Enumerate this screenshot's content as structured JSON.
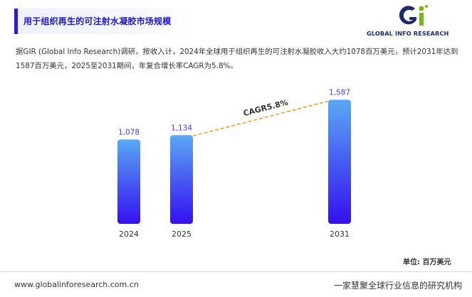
{
  "header": {
    "title": "用于组织再生的可注射水凝胶市场规模"
  },
  "logo": {
    "text": "GLOBAL INFO RESEARCH",
    "accent_color": "#7ab51d",
    "brand_color": "#1d2a6b"
  },
  "description": "据GIR (Global Info Research)调研，按收入计，2024年全球用于组织再生的可注射水凝胶收入大约1078百万美元，预计2031年达到1587百万美元，2025至2031期间，年复合增长率CAGR为5.8%。",
  "chart_data": {
    "type": "bar",
    "categories": [
      "2024",
      "2025",
      "2031"
    ],
    "values": [
      1078,
      1134,
      1587
    ],
    "value_labels": [
      "1,078",
      "1,134",
      "1,587"
    ],
    "unit": "单位: 百万美元",
    "annotation": "CAGR5.8%",
    "bar_gradient": [
      "#5aa8f5",
      "#3410f0"
    ],
    "label_color": "#4b3ed6",
    "trend_color": "#f0a030",
    "ylim": [
      0,
      1700
    ]
  },
  "footer": {
    "url": "www.globalinforesearch.com.cn",
    "slogan": "一家慧聚全球行业信息的研究机构"
  }
}
